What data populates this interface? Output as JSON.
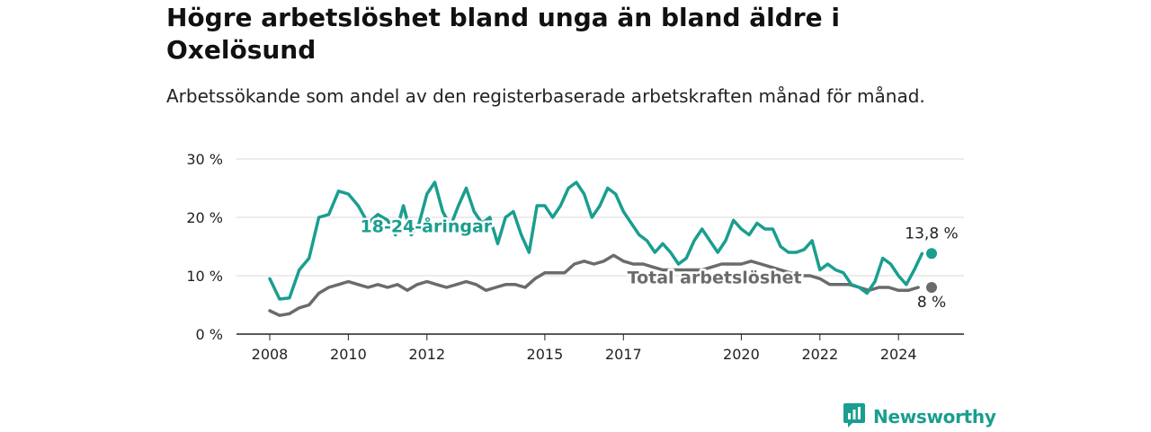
{
  "title": "Högre arbetslöshet bland unga än bland äldre i Oxelösund",
  "subtitle": "Arbetssökande som andel av den registerbaserade arbetskraften månad för månad.",
  "brand": {
    "name": "Newsworthy",
    "icon": "newsworthy-logo-icon"
  },
  "chart_data": {
    "type": "line",
    "yticks": [
      "0 %",
      "10 %",
      "20 %",
      "30 %"
    ],
    "ylim": [
      0,
      30
    ],
    "xticks": [
      "2008",
      "2010",
      "2012",
      "2015",
      "2017",
      "2020",
      "2022",
      "2024"
    ],
    "xlim": [
      2008,
      2025
    ],
    "grid": true,
    "series": [
      {
        "name": "18-24-åringar",
        "color": "#1a9e8f",
        "end_label": "13,8 %",
        "points": [
          [
            2008.0,
            9.5
          ],
          [
            2008.25,
            6.0
          ],
          [
            2008.5,
            6.2
          ],
          [
            2008.75,
            11.0
          ],
          [
            2009.0,
            13.0
          ],
          [
            2009.25,
            20.0
          ],
          [
            2009.5,
            20.5
          ],
          [
            2009.75,
            24.5
          ],
          [
            2010.0,
            24.0
          ],
          [
            2010.25,
            22.0
          ],
          [
            2010.5,
            19.0
          ],
          [
            2010.75,
            20.5
          ],
          [
            2011.0,
            19.5
          ],
          [
            2011.2,
            17.0
          ],
          [
            2011.4,
            22.0
          ],
          [
            2011.6,
            17.0
          ],
          [
            2011.8,
            19.0
          ],
          [
            2012.0,
            24.0
          ],
          [
            2012.2,
            26.0
          ],
          [
            2012.4,
            21.0
          ],
          [
            2012.6,
            18.5
          ],
          [
            2012.8,
            22.0
          ],
          [
            2013.0,
            25.0
          ],
          [
            2013.2,
            21.0
          ],
          [
            2013.4,
            19.0
          ],
          [
            2013.6,
            20.0
          ],
          [
            2013.8,
            15.5
          ],
          [
            2014.0,
            20.0
          ],
          [
            2014.2,
            21.0
          ],
          [
            2014.4,
            17.0
          ],
          [
            2014.6,
            14.0
          ],
          [
            2014.8,
            22.0
          ],
          [
            2015.0,
            22.0
          ],
          [
            2015.2,
            20.0
          ],
          [
            2015.4,
            22.0
          ],
          [
            2015.6,
            25.0
          ],
          [
            2015.8,
            26.0
          ],
          [
            2016.0,
            24.0
          ],
          [
            2016.2,
            20.0
          ],
          [
            2016.4,
            22.0
          ],
          [
            2016.6,
            25.0
          ],
          [
            2016.8,
            24.0
          ],
          [
            2017.0,
            21.0
          ],
          [
            2017.2,
            19.0
          ],
          [
            2017.4,
            17.0
          ],
          [
            2017.6,
            16.0
          ],
          [
            2017.8,
            14.0
          ],
          [
            2018.0,
            15.5
          ],
          [
            2018.2,
            14.0
          ],
          [
            2018.4,
            12.0
          ],
          [
            2018.6,
            13.0
          ],
          [
            2018.8,
            16.0
          ],
          [
            2019.0,
            18.0
          ],
          [
            2019.2,
            16.0
          ],
          [
            2019.4,
            14.0
          ],
          [
            2019.6,
            16.0
          ],
          [
            2019.8,
            19.5
          ],
          [
            2020.0,
            18.0
          ],
          [
            2020.2,
            17.0
          ],
          [
            2020.4,
            19.0
          ],
          [
            2020.6,
            18.0
          ],
          [
            2020.8,
            18.0
          ],
          [
            2021.0,
            15.0
          ],
          [
            2021.2,
            14.0
          ],
          [
            2021.4,
            14.0
          ],
          [
            2021.6,
            14.5
          ],
          [
            2021.8,
            16.0
          ],
          [
            2022.0,
            11.0
          ],
          [
            2022.2,
            12.0
          ],
          [
            2022.4,
            11.0
          ],
          [
            2022.6,
            10.5
          ],
          [
            2022.8,
            8.5
          ],
          [
            2023.0,
            8.0
          ],
          [
            2023.2,
            7.0
          ],
          [
            2023.4,
            9.0
          ],
          [
            2023.6,
            13.0
          ],
          [
            2023.8,
            12.0
          ],
          [
            2024.0,
            10.0
          ],
          [
            2024.2,
            8.5
          ],
          [
            2024.4,
            11.0
          ],
          [
            2024.6,
            13.8
          ]
        ],
        "gaps": [
          [
            2011.1,
            2011.25
          ],
          [
            2012.5,
            2012.7
          ],
          [
            2014.5,
            2014.65
          ],
          [
            2018.4,
            2018.6
          ],
          [
            2021.0,
            2021.15
          ]
        ]
      },
      {
        "name": "Total arbetslöshet",
        "color": "#6b6b6b",
        "end_label": "8 %",
        "points": [
          [
            2008.0,
            4.0
          ],
          [
            2008.25,
            3.2
          ],
          [
            2008.5,
            3.5
          ],
          [
            2008.75,
            4.5
          ],
          [
            2009.0,
            5.0
          ],
          [
            2009.25,
            7.0
          ],
          [
            2009.5,
            8.0
          ],
          [
            2009.75,
            8.5
          ],
          [
            2010.0,
            9.0
          ],
          [
            2010.25,
            8.5
          ],
          [
            2010.5,
            8.0
          ],
          [
            2010.75,
            8.5
          ],
          [
            2011.0,
            8.0
          ],
          [
            2011.25,
            8.5
          ],
          [
            2011.5,
            7.5
          ],
          [
            2011.75,
            8.5
          ],
          [
            2012.0,
            9.0
          ],
          [
            2012.25,
            8.5
          ],
          [
            2012.5,
            8.0
          ],
          [
            2012.75,
            8.5
          ],
          [
            2013.0,
            9.0
          ],
          [
            2013.25,
            8.5
          ],
          [
            2013.5,
            7.5
          ],
          [
            2013.75,
            8.0
          ],
          [
            2014.0,
            8.5
          ],
          [
            2014.25,
            8.5
          ],
          [
            2014.5,
            8.0
          ],
          [
            2014.75,
            9.5
          ],
          [
            2015.0,
            10.5
          ],
          [
            2015.25,
            10.5
          ],
          [
            2015.5,
            10.5
          ],
          [
            2015.75,
            12.0
          ],
          [
            2016.0,
            12.5
          ],
          [
            2016.25,
            12.0
          ],
          [
            2016.5,
            12.5
          ],
          [
            2016.75,
            13.5
          ],
          [
            2017.0,
            12.5
          ],
          [
            2017.25,
            12.0
          ],
          [
            2017.5,
            12.0
          ],
          [
            2017.75,
            11.5
          ],
          [
            2018.0,
            11.0
          ],
          [
            2018.25,
            11.0
          ],
          [
            2018.5,
            11.0
          ],
          [
            2018.75,
            11.0
          ],
          [
            2019.0,
            11.0
          ],
          [
            2019.25,
            11.5
          ],
          [
            2019.5,
            12.0
          ],
          [
            2019.75,
            12.0
          ],
          [
            2020.0,
            12.0
          ],
          [
            2020.25,
            12.5
          ],
          [
            2020.5,
            12.0
          ],
          [
            2020.75,
            11.5
          ],
          [
            2021.0,
            11.0
          ],
          [
            2021.25,
            10.5
          ],
          [
            2021.5,
            10.0
          ],
          [
            2021.75,
            10.0
          ],
          [
            2022.0,
            9.5
          ],
          [
            2022.25,
            8.5
          ],
          [
            2022.5,
            8.5
          ],
          [
            2022.75,
            8.5
          ],
          [
            2023.0,
            8.0
          ],
          [
            2023.25,
            7.5
          ],
          [
            2023.5,
            8.0
          ],
          [
            2023.75,
            8.0
          ],
          [
            2024.0,
            7.5
          ],
          [
            2024.25,
            7.5
          ],
          [
            2024.5,
            8.0
          ]
        ]
      }
    ],
    "annotations": [
      {
        "text": "18-24-åringar",
        "x": 2010.3,
        "y": 17.5,
        "series": 0
      },
      {
        "text": "Total arbetslöshet",
        "x": 2017.1,
        "y": 8.7,
        "series": 1
      }
    ]
  }
}
